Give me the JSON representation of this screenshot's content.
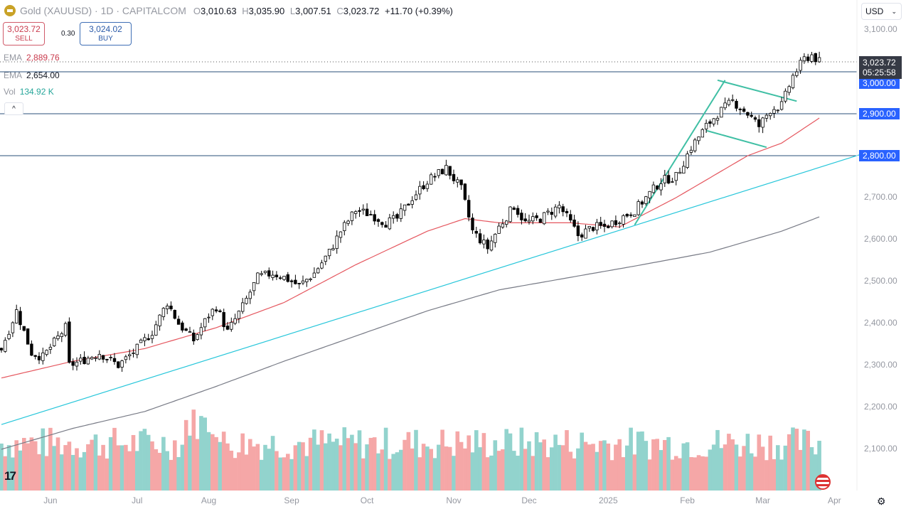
{
  "header": {
    "symbol": "Gold (XAUUSD) · 1D · CAPITALCOM",
    "open_k": "O",
    "open": "3,010.63",
    "high_k": "H",
    "high": "3,035.90",
    "low_k": "L",
    "low": "3,007.51",
    "close_k": "C",
    "close": "3,023.72",
    "change": "+11.70 (+0.39%)"
  },
  "trade": {
    "sell_price": "3,023.72",
    "sell_label": "SELL",
    "spread": "0.30",
    "buy_price": "3,024.02",
    "buy_label": "BUY"
  },
  "indicators": {
    "ema1_label": "EMA",
    "ema1_value": "2,889.76",
    "ema2_label": "EMA",
    "ema2_value": "2,654.00",
    "vol_label": "Vol",
    "vol_value": "134.92 K",
    "collapse": "^"
  },
  "currency": "USD",
  "current": {
    "price": "3,023.72",
    "countdown": "05:25:58"
  },
  "colors": {
    "ema_fast": "#e5575f",
    "ema_slow": "#787b86",
    "trend": "#26c6da",
    "pattern": "#3fbfa4",
    "hline": "#2a4f7a",
    "vol_up": "#92d3cd",
    "vol_down": "#f5a7a7"
  },
  "chart_data": {
    "type": "candlestick",
    "title": "Gold (XAUUSD) 1D",
    "ylim": [
      2050,
      3120
    ],
    "y_ticks": [
      "3,100.00",
      "3,000.00",
      "2,900.00",
      "2,800.00",
      "2,700.00",
      "2,600.00",
      "2,500.00",
      "2,400.00",
      "2,300.00",
      "2,200.00",
      "2,100.00"
    ],
    "y_tick_values": [
      3100,
      3000,
      2900,
      2800,
      2700,
      2600,
      2500,
      2400,
      2300,
      2200,
      2100
    ],
    "highlighted_levels": [
      {
        "label": "3,000.00",
        "value": 3000
      },
      {
        "label": "2,900.00",
        "value": 2900
      },
      {
        "label": "2,800.00",
        "value": 2800
      }
    ],
    "x_ticks": [
      {
        "label": "Jun",
        "bar": 13
      },
      {
        "label": "Jul",
        "bar": 36
      },
      {
        "label": "Aug",
        "bar": 55
      },
      {
        "label": "Sep",
        "bar": 77
      },
      {
        "label": "Oct",
        "bar": 97
      },
      {
        "label": "Nov",
        "bar": 120
      },
      {
        "label": "Dec",
        "bar": 140
      },
      {
        "label": "2025",
        "bar": 161
      },
      {
        "label": "Feb",
        "bar": 182
      },
      {
        "label": "Mar",
        "bar": 202
      },
      {
        "label": "Apr",
        "bar": 221
      }
    ],
    "close_anchors": [
      [
        0,
        2340
      ],
      [
        4,
        2430
      ],
      [
        8,
        2330
      ],
      [
        11,
        2320
      ],
      [
        17,
        2390
      ],
      [
        18,
        2300
      ],
      [
        21,
        2310
      ],
      [
        26,
        2330
      ],
      [
        31,
        2300
      ],
      [
        36,
        2340
      ],
      [
        40,
        2380
      ],
      [
        44,
        2450
      ],
      [
        47,
        2400
      ],
      [
        51,
        2360
      ],
      [
        55,
        2420
      ],
      [
        57,
        2440
      ],
      [
        60,
        2380
      ],
      [
        64,
        2440
      ],
      [
        68,
        2510
      ],
      [
        72,
        2520
      ],
      [
        75,
        2510
      ],
      [
        79,
        2490
      ],
      [
        83,
        2520
      ],
      [
        87,
        2570
      ],
      [
        90,
        2620
      ],
      [
        94,
        2670
      ],
      [
        98,
        2660
      ],
      [
        102,
        2640
      ],
      [
        105,
        2650
      ],
      [
        109,
        2700
      ],
      [
        113,
        2740
      ],
      [
        118,
        2770
      ],
      [
        122,
        2720
      ],
      [
        125,
        2620
      ],
      [
        129,
        2580
      ],
      [
        132,
        2630
      ],
      [
        136,
        2680
      ],
      [
        139,
        2640
      ],
      [
        143,
        2650
      ],
      [
        148,
        2680
      ],
      [
        151,
        2640
      ],
      [
        153,
        2610
      ],
      [
        157,
        2630
      ],
      [
        160,
        2630
      ],
      [
        164,
        2650
      ],
      [
        168,
        2670
      ],
      [
        171,
        2700
      ],
      [
        175,
        2740
      ],
      [
        179,
        2750
      ],
      [
        183,
        2820
      ],
      [
        187,
        2870
      ],
      [
        190,
        2900
      ],
      [
        194,
        2930
      ],
      [
        198,
        2900
      ],
      [
        201,
        2870
      ],
      [
        204,
        2910
      ],
      [
        207,
        2920
      ],
      [
        210,
        2990
      ],
      [
        213,
        3030
      ],
      [
        215,
        3040
      ],
      [
        217,
        3023.72
      ]
    ],
    "ema_fast": [
      [
        0,
        2270
      ],
      [
        19,
        2310
      ],
      [
        38,
        2340
      ],
      [
        57,
        2390
      ],
      [
        75,
        2450
      ],
      [
        94,
        2540
      ],
      [
        113,
        2620
      ],
      [
        123,
        2650
      ],
      [
        132,
        2640
      ],
      [
        151,
        2640
      ],
      [
        164,
        2630
      ],
      [
        179,
        2700
      ],
      [
        198,
        2800
      ],
      [
        207,
        2830
      ],
      [
        217,
        2889.76
      ]
    ],
    "ema_slow": [
      [
        0,
        2100
      ],
      [
        19,
        2150
      ],
      [
        38,
        2190
      ],
      [
        57,
        2250
      ],
      [
        75,
        2310
      ],
      [
        94,
        2370
      ],
      [
        113,
        2430
      ],
      [
        132,
        2480
      ],
      [
        151,
        2510
      ],
      [
        170,
        2540
      ],
      [
        188,
        2570
      ],
      [
        207,
        2620
      ],
      [
        217,
        2654
      ]
    ],
    "trendline": [
      [
        0,
        2159
      ],
      [
        228,
        2803
      ]
    ],
    "pattern_lines": [
      [
        [
          168,
          2635
        ],
        [
          192,
          2980
        ]
      ],
      [
        [
          190,
          2980
        ],
        [
          211,
          2930
        ]
      ],
      [
        [
          187,
          2860
        ],
        [
          203,
          2820
        ]
      ]
    ]
  }
}
